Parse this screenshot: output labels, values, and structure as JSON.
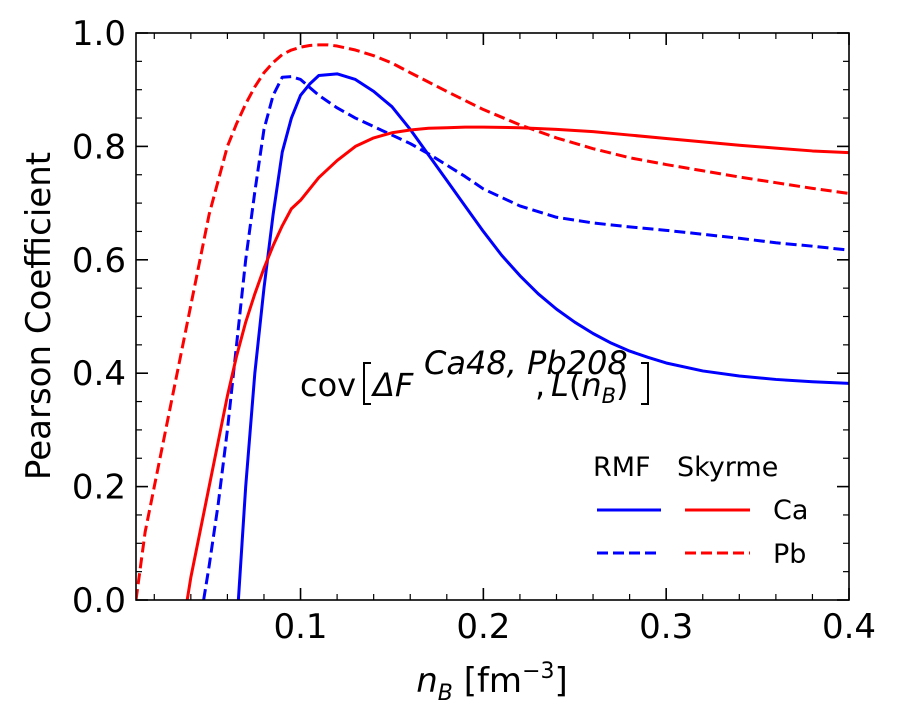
{
  "chart_data": {
    "type": "line",
    "xlabel_var": "n",
    "xlabel_sub": "B",
    "xlabel_unit_open": " [fm",
    "xlabel_unit_exp": "−3",
    "xlabel_unit_close": "]",
    "ylabel": "Pearson Coefficient",
    "xlim": [
      0.01,
      0.4
    ],
    "ylim": [
      0.0,
      1.0
    ],
    "xticks": [
      0.1,
      0.2,
      0.3,
      0.4
    ],
    "xtick_labels": [
      "0.1",
      "0.2",
      "0.3",
      "0.4"
    ],
    "yticks": [
      0.0,
      0.2,
      0.4,
      0.6,
      0.8,
      1.0
    ],
    "ytick_labels": [
      "0.0",
      "0.2",
      "0.4",
      "0.6",
      "0.8",
      "1.0"
    ],
    "annotation": {
      "cov": "cov",
      "delta": "Δ",
      "F": "F",
      "sup": "Ca48, Pb208",
      "comma": ",",
      "L": "L",
      "paren_open": "(",
      "n": "n",
      "sub": "B",
      "paren_close": ")"
    },
    "legend": {
      "col_rmf": "RMF",
      "col_skyrme": "Skyrme",
      "row_ca": "Ca",
      "row_pb": "Pb"
    },
    "series": [
      {
        "name": "RMF Ca",
        "color": "#0000ff",
        "dash": "solid",
        "x": [
          0.066,
          0.07,
          0.075,
          0.08,
          0.085,
          0.09,
          0.095,
          0.1,
          0.105,
          0.11,
          0.12,
          0.13,
          0.14,
          0.15,
          0.16,
          0.17,
          0.18,
          0.19,
          0.2,
          0.21,
          0.22,
          0.23,
          0.24,
          0.25,
          0.26,
          0.27,
          0.28,
          0.29,
          0.3,
          0.32,
          0.34,
          0.36,
          0.38,
          0.4
        ],
        "y": [
          0.0,
          0.2,
          0.4,
          0.55,
          0.68,
          0.79,
          0.85,
          0.89,
          0.91,
          0.925,
          0.928,
          0.918,
          0.897,
          0.87,
          0.83,
          0.785,
          0.74,
          0.695,
          0.65,
          0.608,
          0.572,
          0.54,
          0.513,
          0.49,
          0.47,
          0.453,
          0.439,
          0.428,
          0.418,
          0.404,
          0.395,
          0.389,
          0.385,
          0.382
        ]
      },
      {
        "name": "RMF Pb",
        "color": "#0000ff",
        "dash": "dashed",
        "x": [
          0.047,
          0.05,
          0.055,
          0.06,
          0.065,
          0.07,
          0.075,
          0.08,
          0.085,
          0.09,
          0.095,
          0.1,
          0.11,
          0.12,
          0.13,
          0.14,
          0.15,
          0.16,
          0.17,
          0.18,
          0.19,
          0.2,
          0.22,
          0.24,
          0.26,
          0.28,
          0.3,
          0.32,
          0.34,
          0.36,
          0.38,
          0.4
        ],
        "y": [
          0.0,
          0.06,
          0.17,
          0.3,
          0.45,
          0.6,
          0.72,
          0.83,
          0.89,
          0.922,
          0.923,
          0.918,
          0.89,
          0.868,
          0.85,
          0.835,
          0.82,
          0.805,
          0.787,
          0.767,
          0.747,
          0.725,
          0.695,
          0.675,
          0.665,
          0.658,
          0.652,
          0.645,
          0.638,
          0.63,
          0.624,
          0.617
        ]
      },
      {
        "name": "Skyrme Ca",
        "color": "#ff0000",
        "dash": "solid",
        "x": [
          0.038,
          0.04,
          0.045,
          0.05,
          0.055,
          0.06,
          0.065,
          0.07,
          0.075,
          0.08,
          0.085,
          0.09,
          0.095,
          0.1,
          0.11,
          0.12,
          0.13,
          0.14,
          0.15,
          0.16,
          0.17,
          0.18,
          0.19,
          0.2,
          0.22,
          0.24,
          0.26,
          0.28,
          0.3,
          0.32,
          0.34,
          0.36,
          0.38,
          0.4
        ],
        "y": [
          0.0,
          0.04,
          0.12,
          0.2,
          0.28,
          0.36,
          0.43,
          0.49,
          0.54,
          0.585,
          0.625,
          0.66,
          0.69,
          0.705,
          0.745,
          0.775,
          0.8,
          0.815,
          0.824,
          0.829,
          0.832,
          0.833,
          0.834,
          0.834,
          0.833,
          0.83,
          0.826,
          0.82,
          0.814,
          0.808,
          0.802,
          0.797,
          0.792,
          0.789
        ]
      },
      {
        "name": "Skyrme Pb",
        "color": "#ff0000",
        "dash": "dashed",
        "x": [
          0.01,
          0.015,
          0.02,
          0.025,
          0.03,
          0.035,
          0.04,
          0.045,
          0.05,
          0.055,
          0.06,
          0.065,
          0.07,
          0.075,
          0.08,
          0.085,
          0.09,
          0.095,
          0.1,
          0.105,
          0.11,
          0.115,
          0.12,
          0.13,
          0.14,
          0.15,
          0.16,
          0.18,
          0.2,
          0.22,
          0.24,
          0.26,
          0.28,
          0.3,
          0.32,
          0.34,
          0.36,
          0.38,
          0.4
        ],
        "y": [
          0.0,
          0.12,
          0.2,
          0.28,
          0.36,
          0.44,
          0.52,
          0.6,
          0.68,
          0.74,
          0.8,
          0.84,
          0.875,
          0.905,
          0.93,
          0.948,
          0.962,
          0.97,
          0.975,
          0.978,
          0.979,
          0.979,
          0.977,
          0.97,
          0.96,
          0.947,
          0.93,
          0.897,
          0.865,
          0.838,
          0.815,
          0.796,
          0.78,
          0.768,
          0.757,
          0.746,
          0.736,
          0.726,
          0.717
        ]
      }
    ]
  }
}
